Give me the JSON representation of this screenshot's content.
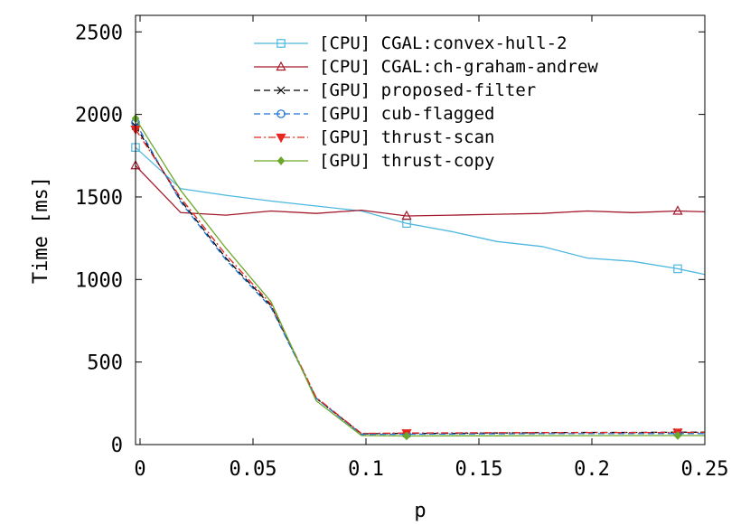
{
  "chart_data": {
    "type": "line",
    "xlabel": "p",
    "ylabel": "Time [ms]",
    "xlim": [
      -0.002,
      0.25
    ],
    "ylim": [
      0,
      2600
    ],
    "x_ticks": [
      0,
      0.05,
      0.1,
      0.15,
      0.2,
      0.25
    ],
    "x_tick_labels": [
      "0",
      "0.05",
      "0.1",
      "0.15",
      "0.2",
      "0.25"
    ],
    "y_ticks": [
      0,
      500,
      1000,
      1500,
      2000,
      2500
    ],
    "y_tick_labels": [
      "0",
      "500",
      "1000",
      "1500",
      "2000",
      "2500"
    ],
    "legend_position": "top-right",
    "grid": false,
    "series": [
      {
        "name": "[CPU] CGAL:convex-hull-2",
        "color": "#4db8e0",
        "dash": "solid",
        "marker": "square",
        "x": [
          -0.002,
          0.018,
          0.038,
          0.058,
          0.078,
          0.098,
          0.118,
          0.138,
          0.158,
          0.178,
          0.198,
          0.218,
          0.238,
          0.25
        ],
        "y": [
          1800,
          1550,
          1510,
          1475,
          1445,
          1415,
          1340,
          1290,
          1230,
          1200,
          1130,
          1110,
          1065,
          1030
        ],
        "marker_indices": [
          0,
          6,
          12
        ]
      },
      {
        "name": "[CPU] CGAL:ch-graham-andrew",
        "color": "#a3192b",
        "dash": "solid",
        "marker": "triangle",
        "x": [
          -0.002,
          0.018,
          0.038,
          0.058,
          0.078,
          0.098,
          0.118,
          0.138,
          0.158,
          0.178,
          0.198,
          0.218,
          0.238,
          0.25
        ],
        "y": [
          1690,
          1405,
          1390,
          1415,
          1400,
          1420,
          1385,
          1390,
          1395,
          1400,
          1415,
          1405,
          1415,
          1410
        ],
        "marker_indices": [
          0,
          6,
          12
        ]
      },
      {
        "name": "[GPU] proposed-filter",
        "color": "#000000",
        "dash": "dash",
        "marker": "x",
        "x": [
          -0.002,
          0.018,
          0.038,
          0.058,
          0.078,
          0.098,
          0.118,
          0.138,
          0.158,
          0.178,
          0.198,
          0.218,
          0.238,
          0.25
        ],
        "y": [
          1930,
          1480,
          1130,
          840,
          280,
          65,
          68,
          68,
          70,
          72,
          74,
          74,
          75,
          75
        ],
        "marker_indices": [
          0,
          6,
          12
        ]
      },
      {
        "name": "[GPU] cub-flagged",
        "color": "#1a6fd6",
        "dash": "dash",
        "marker": "circle",
        "x": [
          -0.002,
          0.018,
          0.038,
          0.058,
          0.078,
          0.098,
          0.118,
          0.138,
          0.158,
          0.178,
          0.198,
          0.218,
          0.238,
          0.25
        ],
        "y": [
          1950,
          1470,
          1120,
          830,
          280,
          62,
          63,
          64,
          65,
          66,
          66,
          67,
          67,
          67
        ],
        "marker_indices": [
          0,
          6,
          12
        ]
      },
      {
        "name": "[GPU] thrust-scan",
        "color": "#e8251e",
        "dash": "dashdot",
        "marker": "triangle-down",
        "x": [
          -0.002,
          0.018,
          0.038,
          0.058,
          0.078,
          0.098,
          0.118,
          0.138,
          0.158,
          0.178,
          0.198,
          0.218,
          0.238,
          0.25
        ],
        "y": [
          1910,
          1495,
          1150,
          850,
          285,
          68,
          70,
          71,
          72,
          72,
          73,
          73,
          74,
          74
        ],
        "marker_indices": [
          0,
          6,
          12
        ]
      },
      {
        "name": "[GPU] thrust-copy",
        "color": "#6aa82a",
        "dash": "solid",
        "marker": "diamond",
        "x": [
          -0.002,
          0.018,
          0.038,
          0.058,
          0.078,
          0.098,
          0.118,
          0.138,
          0.158,
          0.178,
          0.198,
          0.218,
          0.238,
          0.25
        ],
        "y": [
          1975,
          1540,
          1190,
          865,
          265,
          55,
          52,
          53,
          53,
          54,
          54,
          55,
          55,
          55
        ],
        "marker_indices": [
          0,
          6,
          12
        ]
      }
    ]
  }
}
